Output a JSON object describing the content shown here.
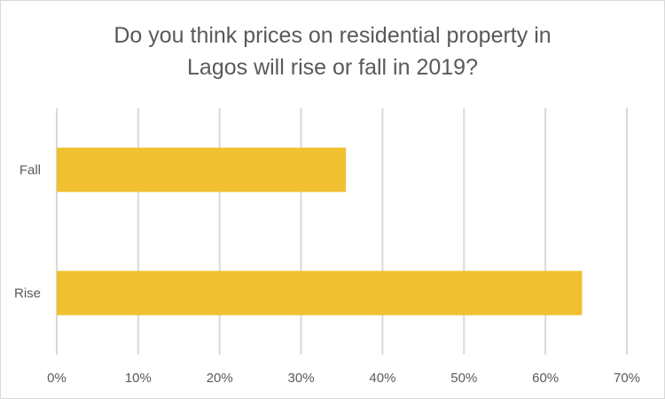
{
  "chart_data": {
    "type": "bar",
    "orientation": "horizontal",
    "title_lines": [
      "Do you think prices on residential property in",
      "Lagos will rise or fall in 2019?"
    ],
    "categories": [
      "Fall",
      "Rise"
    ],
    "values": [
      35.5,
      64.5
    ],
    "xlabel": "",
    "ylabel": "",
    "xlim": [
      0,
      70
    ],
    "xticks": [
      "0%",
      "10%",
      "20%",
      "30%",
      "40%",
      "50%",
      "60%",
      "70%"
    ],
    "grid": "vertical",
    "bar_color": "#F0C030",
    "grid_color": "#D9D9D9"
  }
}
